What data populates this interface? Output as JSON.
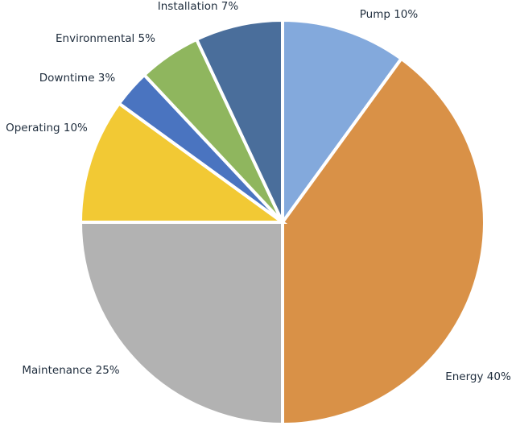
{
  "chart_data": {
    "type": "pie",
    "title": "",
    "start_angle_deg": 0,
    "direction": "clockwise",
    "slices": [
      {
        "label": "Pump",
        "value": 10,
        "text": "Pump 10%",
        "color": "#83A9DC"
      },
      {
        "label": "Energy",
        "value": 40,
        "text": "Energy 40%",
        "color": "#D99147"
      },
      {
        "label": "Maintenance",
        "value": 25,
        "text": "Maintenance 25%",
        "color": "#B2B2B2"
      },
      {
        "label": "Operating",
        "value": 10,
        "text": "Operating 10%",
        "color": "#F2C934"
      },
      {
        "label": "Downtime",
        "value": 3,
        "text": "Downtime 3%",
        "color": "#4A74C0"
      },
      {
        "label": "Environmental",
        "value": 5,
        "text": "Environmental 5%",
        "color": "#8FB65E"
      },
      {
        "label": "Installation",
        "value": 7,
        "text": "Installation 7%",
        "color": "#4A6E9B"
      }
    ]
  }
}
